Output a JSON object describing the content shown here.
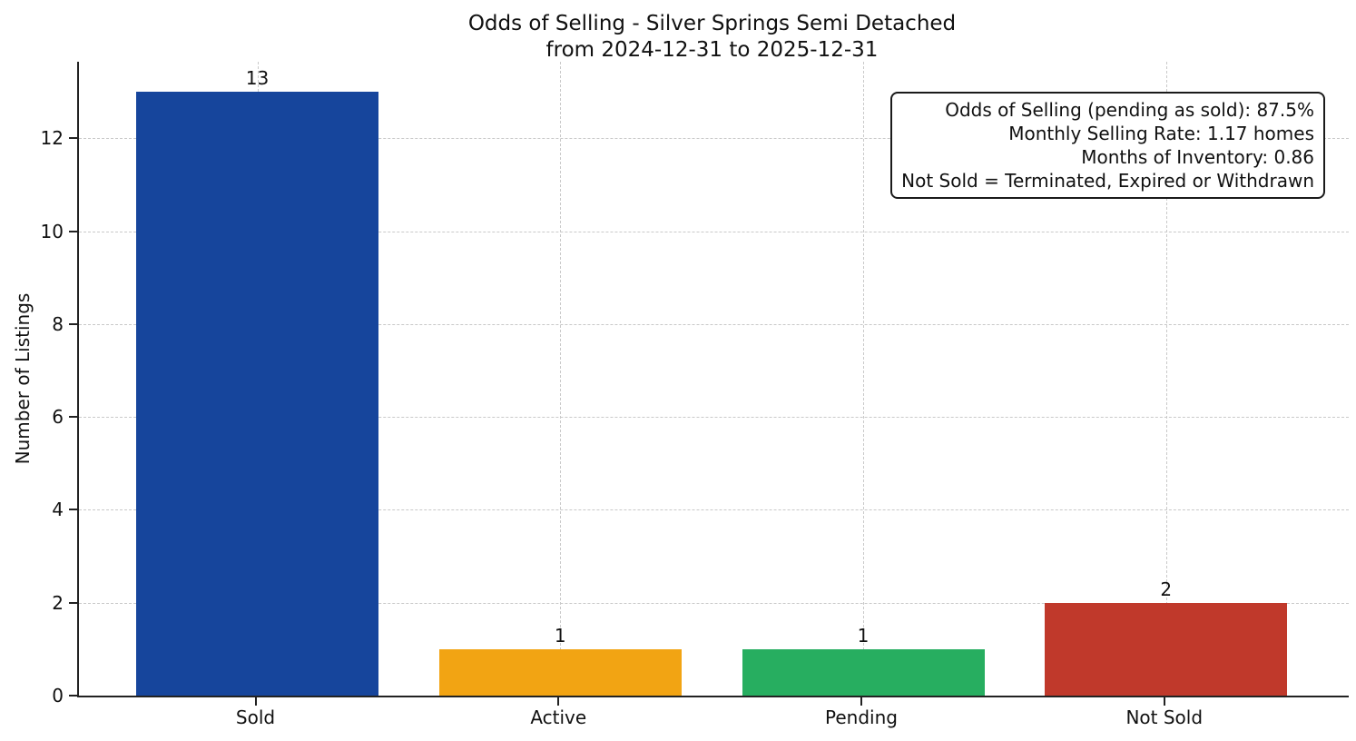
{
  "chart_data": {
    "type": "bar",
    "title_lines": [
      "Odds of Selling - Silver Springs Semi Detached",
      "from 2024-12-31 to 2025-12-31"
    ],
    "categories": [
      "Sold",
      "Active",
      "Pending",
      "Not Sold"
    ],
    "values": [
      13,
      1,
      1,
      2
    ],
    "bar_value_labels": [
      "13",
      "1",
      "1",
      "2"
    ],
    "bar_colors": [
      "#16459C",
      "#F2A413",
      "#27AE60",
      "#C0392B"
    ],
    "xlabel": "",
    "ylabel": "Number of Listings",
    "yticks": [
      0,
      2,
      4,
      6,
      8,
      10,
      12
    ],
    "ylim": [
      0,
      13.65
    ],
    "grid": "dashed-both-axes",
    "legend": "none",
    "annotation": {
      "position": "top-right",
      "lines": [
        "Odds of Selling (pending as sold): 87.5%",
        "Monthly Selling Rate: 1.17 homes",
        "Months of Inventory: 0.86",
        "Not Sold = Terminated, Expired or Withdrawn"
      ],
      "odds_of_selling_percent": 87.5,
      "monthly_selling_rate_homes": 1.17,
      "months_of_inventory": 0.86
    }
  }
}
